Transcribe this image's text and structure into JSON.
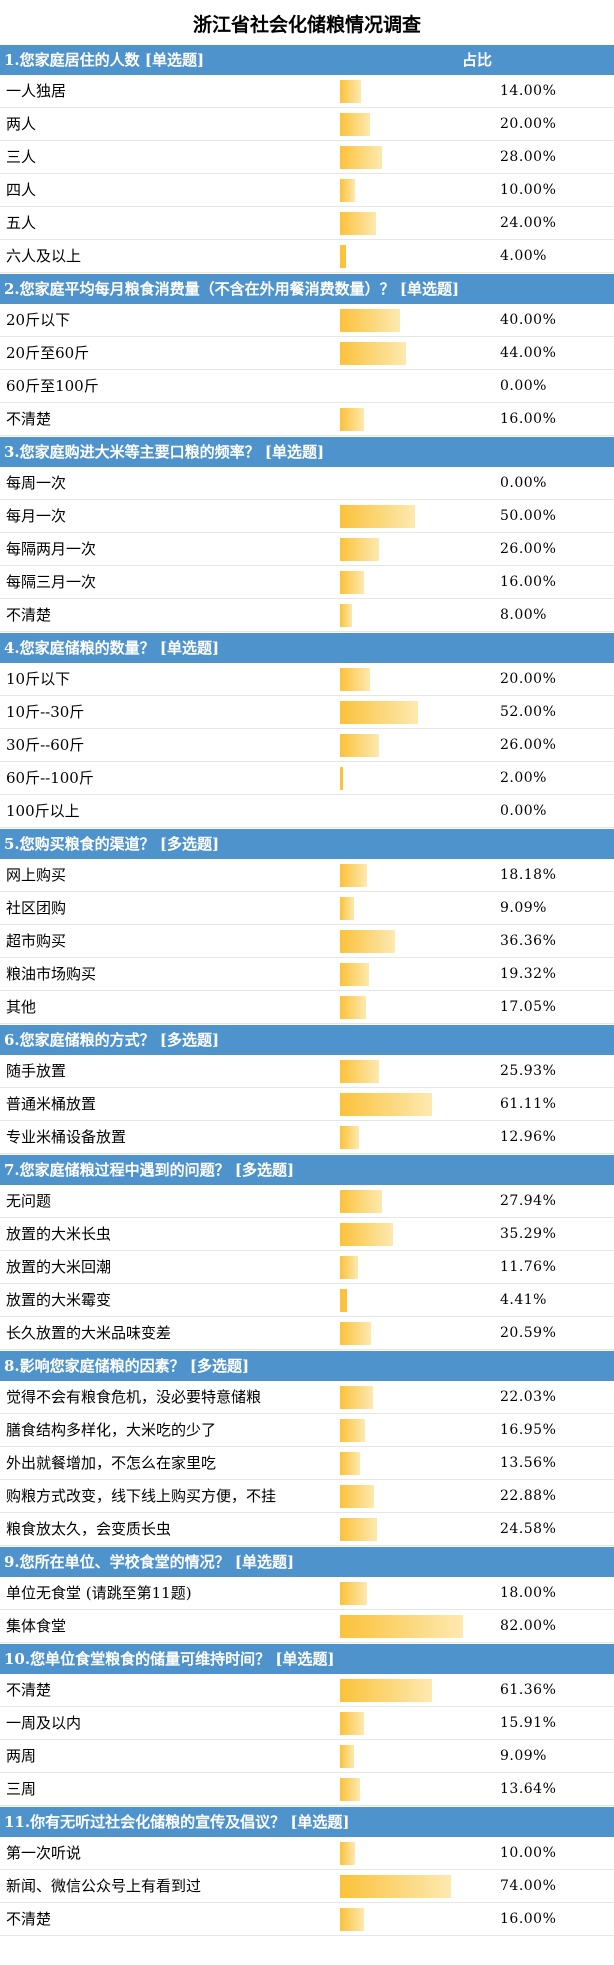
{
  "title": "浙江省社会化储粮情况调查",
  "ratio_header": "占比",
  "colors": {
    "header_bg": "#4f93cd",
    "bar_start": "#fbc23b",
    "bar_end": "#fde9b0"
  },
  "chart_data": {
    "type": "bar",
    "orientation": "horizontal",
    "sections": [
      {
        "question": "1.您家庭居住的人数 [单选题]",
        "show_ratio": true,
        "items": [
          {
            "label": "一人独居",
            "value": 14.0,
            "display": "14.00%"
          },
          {
            "label": "两人",
            "value": 20.0,
            "display": "20.00%"
          },
          {
            "label": "三人",
            "value": 28.0,
            "display": "28.00%"
          },
          {
            "label": "四人",
            "value": 10.0,
            "display": "10.00%"
          },
          {
            "label": "五人",
            "value": 24.0,
            "display": "24.00%"
          },
          {
            "label": "六人及以上",
            "value": 4.0,
            "display": "4.00%"
          }
        ]
      },
      {
        "question": "2.您家庭平均每月粮食消费量（不含在外用餐消费数量）？ [单选题]",
        "items": [
          {
            "label": "20斤以下",
            "value": 40.0,
            "display": "40.00%"
          },
          {
            "label": "20斤至60斤",
            "value": 44.0,
            "display": "44.00%"
          },
          {
            "label": "60斤至100斤",
            "value": 0.0,
            "display": "0.00%"
          },
          {
            "label": "不清楚",
            "value": 16.0,
            "display": "16.00%"
          }
        ]
      },
      {
        "question": "3.您家庭购进大米等主要口粮的频率？ [单选题]",
        "items": [
          {
            "label": "每周一次",
            "value": 0.0,
            "display": "0.00%"
          },
          {
            "label": "每月一次",
            "value": 50.0,
            "display": "50.00%"
          },
          {
            "label": "每隔两月一次",
            "value": 26.0,
            "display": "26.00%"
          },
          {
            "label": "每隔三月一次",
            "value": 16.0,
            "display": "16.00%"
          },
          {
            "label": "不清楚",
            "value": 8.0,
            "display": "8.00%"
          }
        ]
      },
      {
        "question": "4.您家庭储粮的数量？ [单选题]",
        "items": [
          {
            "label": "10斤以下",
            "value": 20.0,
            "display": "20.00%"
          },
          {
            "label": "10斤--30斤",
            "value": 52.0,
            "display": "52.00%"
          },
          {
            "label": "30斤--60斤",
            "value": 26.0,
            "display": "26.00%"
          },
          {
            "label": "60斤--100斤",
            "value": 2.0,
            "display": "2.00%"
          },
          {
            "label": "100斤以上",
            "value": 0.0,
            "display": "0.00%"
          }
        ]
      },
      {
        "question": "5.您购买粮食的渠道？ [多选题]",
        "items": [
          {
            "label": "网上购买",
            "value": 18.18,
            "display": "18.18%"
          },
          {
            "label": "社区团购",
            "value": 9.09,
            "display": "9.09%"
          },
          {
            "label": "超市购买",
            "value": 36.36,
            "display": "36.36%"
          },
          {
            "label": "粮油市场购买",
            "value": 19.32,
            "display": "19.32%"
          },
          {
            "label": "其他",
            "value": 17.05,
            "display": "17.05%"
          }
        ]
      },
      {
        "question": "6.您家庭储粮的方式？ [多选题]",
        "items": [
          {
            "label": "随手放置",
            "value": 25.93,
            "display": "25.93%"
          },
          {
            "label": "普通米桶放置",
            "value": 61.11,
            "display": "61.11%"
          },
          {
            "label": "专业米桶设备放置",
            "value": 12.96,
            "display": "12.96%"
          }
        ]
      },
      {
        "question": "7.您家庭储粮过程中遇到的问题？ [多选题]",
        "items": [
          {
            "label": "无问题",
            "value": 27.94,
            "display": "27.94%"
          },
          {
            "label": "放置的大米长虫",
            "value": 35.29,
            "display": "35.29%"
          },
          {
            "label": "放置的大米回潮",
            "value": 11.76,
            "display": "11.76%"
          },
          {
            "label": "放置的大米霉变",
            "value": 4.41,
            "display": "4.41%"
          },
          {
            "label": "长久放置的大米品味变差",
            "value": 20.59,
            "display": "20.59%"
          }
        ]
      },
      {
        "question": "8.影响您家庭储粮的因素？ [多选题]",
        "items": [
          {
            "label": "觉得不会有粮食危机，没必要特意储粮",
            "value": 22.03,
            "display": "22.03%"
          },
          {
            "label": "膳食结构多样化，大米吃的少了",
            "value": 16.95,
            "display": "16.95%"
          },
          {
            "label": "外出就餐增加，不怎么在家里吃",
            "value": 13.56,
            "display": "13.56%"
          },
          {
            "label": "购粮方式改变，线下线上购买方便，不挂",
            "value": 22.88,
            "display": "22.88%"
          },
          {
            "label": "粮食放太久，会变质长虫",
            "value": 24.58,
            "display": "24.58%"
          }
        ]
      },
      {
        "question": "9.您所在单位、学校食堂的情况？ [单选题]",
        "items": [
          {
            "label": "单位无食堂 (请跳至第11题)",
            "value": 18.0,
            "display": "18.00%"
          },
          {
            "label": "集体食堂",
            "value": 82.0,
            "display": "82.00%"
          }
        ]
      },
      {
        "question": "10.您单位食堂粮食的储量可维持时间？ [单选题]",
        "items": [
          {
            "label": "不清楚",
            "value": 61.36,
            "display": "61.36%"
          },
          {
            "label": "一周及以内",
            "value": 15.91,
            "display": "15.91%"
          },
          {
            "label": "两周",
            "value": 9.09,
            "display": "9.09%"
          },
          {
            "label": "三周",
            "value": 13.64,
            "display": "13.64%"
          }
        ]
      },
      {
        "question": "11.你有无听过社会化储粮的宣传及倡议？ [单选题]",
        "items": [
          {
            "label": "第一次听说",
            "value": 10.0,
            "display": "10.00%"
          },
          {
            "label": "新闻、微信公众号上有看到过",
            "value": 74.0,
            "display": "74.00%"
          },
          {
            "label": "不清楚",
            "value": 16.0,
            "display": "16.00%"
          }
        ]
      }
    ]
  }
}
